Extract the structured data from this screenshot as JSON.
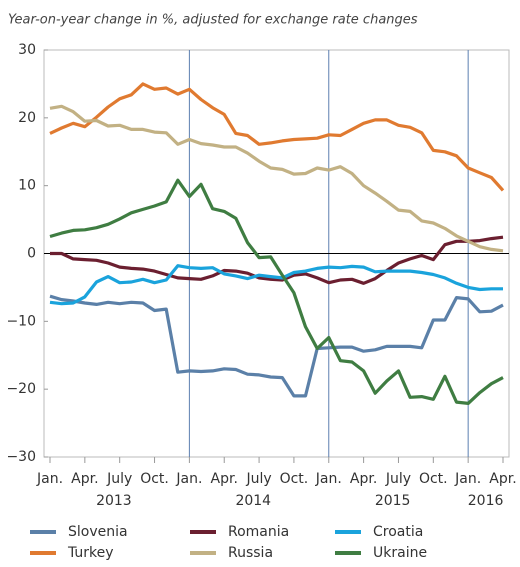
{
  "chart_data": {
    "type": "line",
    "subtitle": "Year-on-year change in %, adjusted for exchange rate changes",
    "x": [
      "2013-01",
      "2013-02",
      "2013-03",
      "2013-04",
      "2013-05",
      "2013-06",
      "2013-07",
      "2013-08",
      "2013-09",
      "2013-10",
      "2013-11",
      "2013-12",
      "2014-01",
      "2014-02",
      "2014-03",
      "2014-04",
      "2014-05",
      "2014-06",
      "2014-07",
      "2014-08",
      "2014-09",
      "2014-10",
      "2014-11",
      "2014-12",
      "2015-01",
      "2015-02",
      "2015-03",
      "2015-04",
      "2015-05",
      "2015-06",
      "2015-07",
      "2015-08",
      "2015-09",
      "2015-10",
      "2015-11",
      "2015-12",
      "2016-01",
      "2016-02",
      "2016-03",
      "2016-04"
    ],
    "xticks": [
      {
        "value": "2013-01",
        "label": "Jan."
      },
      {
        "value": "2013-04",
        "label": "Apr."
      },
      {
        "value": "2013-07",
        "label": "July"
      },
      {
        "value": "2013-10",
        "label": "Oct."
      },
      {
        "value": "2014-01",
        "label": "Jan."
      },
      {
        "value": "2014-04",
        "label": "Apr."
      },
      {
        "value": "2014-07",
        "label": "July"
      },
      {
        "value": "2014-10",
        "label": "Oct."
      },
      {
        "value": "2015-01",
        "label": "Jan."
      },
      {
        "value": "2015-04",
        "label": "Apr."
      },
      {
        "value": "2015-07",
        "label": "July"
      },
      {
        "value": "2015-10",
        "label": "Oct."
      },
      {
        "value": "2016-01",
        "label": "Jan."
      },
      {
        "value": "2016-04",
        "label": "Apr."
      }
    ],
    "year_labels": [
      "2013",
      "2014",
      "2015",
      "2016"
    ],
    "ylim": [
      -30,
      30
    ],
    "yticks": [
      {
        "value": -30,
        "label": "−30"
      },
      {
        "value": -20,
        "label": "−20"
      },
      {
        "value": -10,
        "label": "−10"
      },
      0,
      10,
      20,
      30
    ],
    "series": [
      {
        "name": "Slovenia",
        "color": "#5b80a8",
        "values": [
          -6.3,
          -6.8,
          -7.0,
          -7.3,
          -7.5,
          -7.2,
          -7.4,
          -7.2,
          -7.3,
          -8.4,
          -8.2,
          -17.5,
          -17.3,
          -17.4,
          -17.3,
          -17.0,
          -17.1,
          -17.8,
          -17.9,
          -18.2,
          -18.3,
          -21.0,
          -21.0,
          -14.0,
          -13.9,
          -13.8,
          -13.8,
          -14.4,
          -14.2,
          -13.7,
          -13.7,
          -13.7,
          -13.9,
          -9.8,
          -9.8,
          -6.5,
          -6.7,
          -8.6,
          -8.5,
          -7.6
        ]
      },
      {
        "name": "Turkey",
        "color": "#e07a30",
        "values": [
          17.7,
          18.5,
          19.2,
          18.7,
          20.1,
          21.6,
          22.8,
          23.4,
          25.0,
          24.2,
          24.4,
          23.5,
          24.2,
          22.7,
          21.5,
          20.5,
          17.7,
          17.4,
          16.1,
          16.3,
          16.6,
          16.8,
          16.9,
          17.0,
          17.5,
          17.4,
          18.3,
          19.2,
          19.7,
          19.7,
          18.9,
          18.6,
          17.8,
          15.2,
          15.0,
          14.4,
          12.6,
          11.9,
          11.2,
          9.3
        ]
      },
      {
        "name": "Romania",
        "color": "#6b1f30",
        "values": [
          0,
          0,
          -0.8,
          -0.9,
          -1.0,
          -1.4,
          -2.0,
          -2.2,
          -2.3,
          -2.6,
          -3.1,
          -3.6,
          -3.7,
          -3.8,
          -3.3,
          -2.5,
          -2.6,
          -2.9,
          -3.6,
          -3.8,
          -3.9,
          -3.2,
          -3.0,
          -3.6,
          -4.3,
          -3.9,
          -3.8,
          -4.4,
          -3.7,
          -2.5,
          -1.4,
          -0.8,
          -0.3,
          -0.9,
          1.3,
          1.8,
          1.8,
          1.9,
          2.2,
          2.4
        ]
      },
      {
        "name": "Russia",
        "color": "#c2b184",
        "values": [
          21.4,
          21.7,
          20.9,
          19.5,
          19.6,
          18.8,
          18.9,
          18.3,
          18.3,
          17.9,
          17.8,
          16.1,
          16.8,
          16.2,
          16.0,
          15.7,
          15.7,
          14.8,
          13.6,
          12.6,
          12.4,
          11.7,
          11.8,
          12.6,
          12.3,
          12.8,
          11.8,
          10.0,
          8.9,
          7.7,
          6.4,
          6.2,
          4.8,
          4.5,
          3.7,
          2.6,
          1.8,
          1.0,
          0.6,
          0.4
        ]
      },
      {
        "name": "Croatia",
        "color": "#1aa3dc",
        "values": [
          -7.2,
          -7.4,
          -7.3,
          -6.4,
          -4.2,
          -3.4,
          -4.3,
          -4.2,
          -3.8,
          -4.3,
          -3.9,
          -1.8,
          -2.1,
          -2.2,
          -2.1,
          -3.0,
          -3.3,
          -3.7,
          -3.2,
          -3.4,
          -3.6,
          -2.8,
          -2.6,
          -2.2,
          -2.0,
          -2.1,
          -1.9,
          -2.0,
          -2.7,
          -2.6,
          -2.6,
          -2.6,
          -2.8,
          -3.1,
          -3.6,
          -4.4,
          -5.0,
          -5.3,
          -5.2,
          -5.2
        ]
      },
      {
        "name": "Ukraine",
        "color": "#3f7d42",
        "values": [
          2.5,
          3.0,
          3.4,
          3.5,
          3.8,
          4.3,
          5.1,
          6.0,
          6.5,
          7.0,
          7.6,
          10.8,
          8.4,
          10.2,
          6.6,
          6.2,
          5.2,
          1.6,
          -0.6,
          -0.5,
          -3.2,
          -5.8,
          -10.8,
          -14.0,
          -12.4,
          -15.8,
          -16.0,
          -17.3,
          -20.6,
          -18.8,
          -17.3,
          -21.2,
          -21.1,
          -21.5,
          -18.1,
          -21.9,
          -22.1,
          -20.5,
          -19.2,
          -18.3
        ]
      }
    ]
  }
}
